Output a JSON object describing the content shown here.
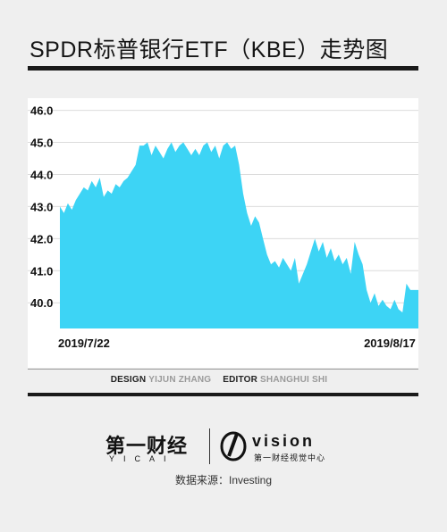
{
  "header": {
    "title": "SPDR标普银行ETF（KBE）走势图"
  },
  "chart_data": {
    "type": "area",
    "title": "SPDR标普银行ETF（KBE）走势图",
    "xlabel": "",
    "ylabel": "",
    "x_tick_labels": [
      "2019/7/22",
      "2019/8/17"
    ],
    "y_ticks": [
      "46.0",
      "45.0",
      "44.0",
      "43.0",
      "42.0",
      "41.0",
      "40.0"
    ],
    "ylim": [
      39.2,
      46.1
    ],
    "grid": true,
    "fill_color": "#3dd4f5",
    "series": [
      {
        "values": [
          43.0,
          42.8,
          43.1,
          42.9,
          43.2,
          43.4,
          43.6,
          43.5,
          43.8,
          43.6,
          43.9,
          43.3,
          43.5,
          43.4,
          43.7,
          43.6,
          43.8,
          43.9,
          44.1,
          44.3,
          44.9,
          44.9,
          45.0,
          44.6,
          44.9,
          44.7,
          44.5,
          44.8,
          45.0,
          44.7,
          44.9,
          45.0,
          44.8,
          44.6,
          44.8,
          44.6,
          44.9,
          45.0,
          44.7,
          44.9,
          44.5,
          44.9,
          45.0,
          44.8,
          44.9,
          44.3,
          43.4,
          42.8,
          42.4,
          42.7,
          42.5,
          42.0,
          41.5,
          41.2,
          41.3,
          41.1,
          41.4,
          41.2,
          41.0,
          41.4,
          40.6,
          40.9,
          41.2,
          41.6,
          42.0,
          41.6,
          41.9,
          41.4,
          41.7,
          41.3,
          41.5,
          41.2,
          41.4,
          40.9,
          41.9,
          41.5,
          41.2,
          40.4,
          40.0,
          40.3,
          39.9,
          40.1,
          39.9,
          39.8,
          40.1,
          39.8,
          39.7,
          40.6,
          40.4,
          40.4,
          40.4
        ]
      }
    ]
  },
  "credits": {
    "design_role": "DESIGN",
    "design_name": "YIJUN ZHANG",
    "editor_role": "EDITOR",
    "editor_name": "SHANGHUI SHI"
  },
  "logos": {
    "yicai_main": "第一财经",
    "yicai_sub": "YICAI",
    "vision_word": "vision",
    "vision_sub": "第一财经视觉中心"
  },
  "source": "数据来源：Investing"
}
